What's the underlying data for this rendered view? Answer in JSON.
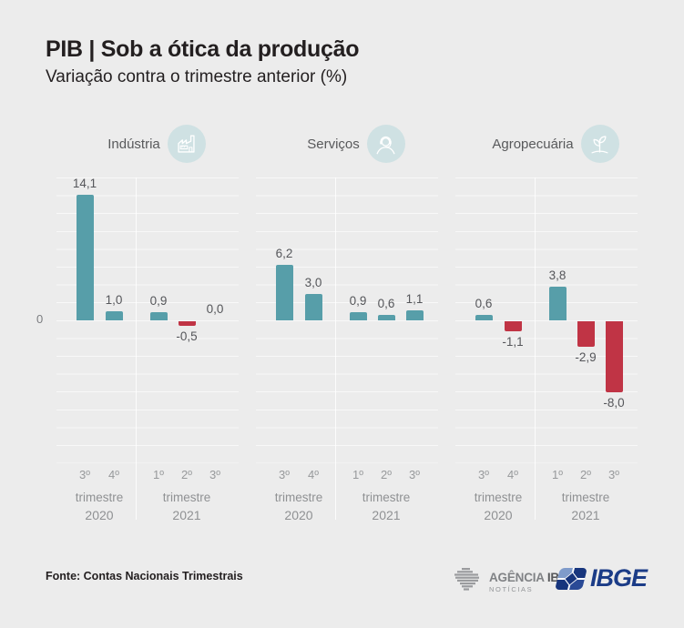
{
  "header": {
    "title": "PIB | Sob a ótica da produção",
    "subtitle": "Variação contra o trimestre anterior (%)"
  },
  "axis": {
    "zero_label": "0"
  },
  "chart_data": {
    "type": "bar",
    "unit": "%",
    "categories": [
      "3º",
      "4º",
      "1º",
      "2º",
      "3º"
    ],
    "group_labels": [
      {
        "line1": "trimestre",
        "line2": "2020",
        "category_span": [
          0,
          1
        ]
      },
      {
        "line1": "trimestre",
        "line2": "2021",
        "category_span": [
          2,
          4
        ]
      }
    ],
    "panels": [
      {
        "name": "Indústria",
        "icon": "factory-icon",
        "values": [
          14.1,
          1.0,
          0.9,
          -0.5,
          0.0
        ],
        "labels": [
          "14,1",
          "1,0",
          "0,9",
          "-0,5",
          "0,0"
        ]
      },
      {
        "name": "Serviços",
        "icon": "headset-person-icon",
        "values": [
          6.2,
          3.0,
          0.9,
          0.6,
          1.1
        ],
        "labels": [
          "6,2",
          "3,0",
          "0,9",
          "0,6",
          "1,1"
        ]
      },
      {
        "name": "Agropecuária",
        "icon": "plant-icon",
        "values": [
          0.6,
          -1.1,
          3.8,
          -2.9,
          -8.0
        ],
        "labels": [
          "0,6",
          "-1,1",
          "3,8",
          "-2,9",
          "-8,0"
        ]
      }
    ],
    "ylim": [
      -16,
      16
    ],
    "gridline_step": 2,
    "grid": "horizontal",
    "legend": "none",
    "colors": {
      "positive": "#579ea9",
      "negative": "#c03445",
      "icon_circle": "#cfe1e3",
      "background": "#ececec"
    }
  },
  "footer": {
    "source": "Fonte: Contas Nacionais Trimestrais",
    "agencia_logo": {
      "word1": "AGÊNCIA",
      "word2": "IBGE",
      "line2": "NOTÍCIAS"
    },
    "ibge_logo": "IBGE"
  }
}
